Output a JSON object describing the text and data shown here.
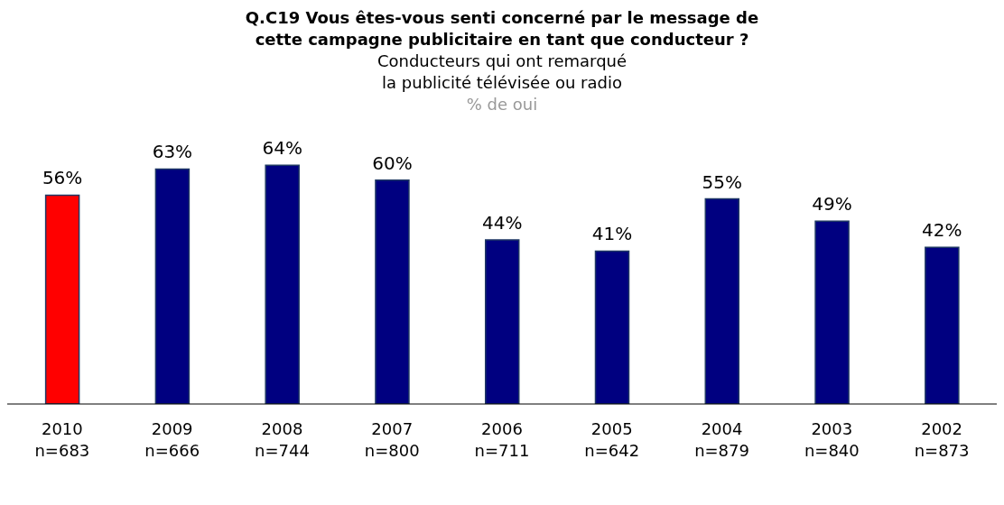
{
  "chart_data": {
    "type": "bar",
    "title": "Q.C19 Vous êtes-vous senti concerné par le message de\ncette campagne publicitaire en tant que conducteur ?",
    "subtitle": "Conducteurs qui ont remarqué\nla publicité télévisée ou radio",
    "annotations": [
      "% de oui"
    ],
    "categories": [
      "2010\nn=683",
      "2009\nn=666",
      "2008\nn=744",
      "2007\nn=800",
      "2006\nn=711",
      "2005\nn=642",
      "2004\nn=879",
      "2003\nn=840",
      "2002\nn=873"
    ],
    "values": [
      56,
      63,
      64,
      60,
      44,
      41,
      55,
      49,
      42
    ],
    "colors": [
      "#ff0000",
      "#000080",
      "#000080",
      "#000080",
      "#000080",
      "#000080",
      "#000080",
      "#000080",
      "#000080"
    ],
    "value_labels": [
      "56%",
      "63%",
      "64%",
      "60%",
      "44%",
      "41%",
      "55%",
      "49%",
      "42%"
    ],
    "grid": false,
    "legend": false
  }
}
